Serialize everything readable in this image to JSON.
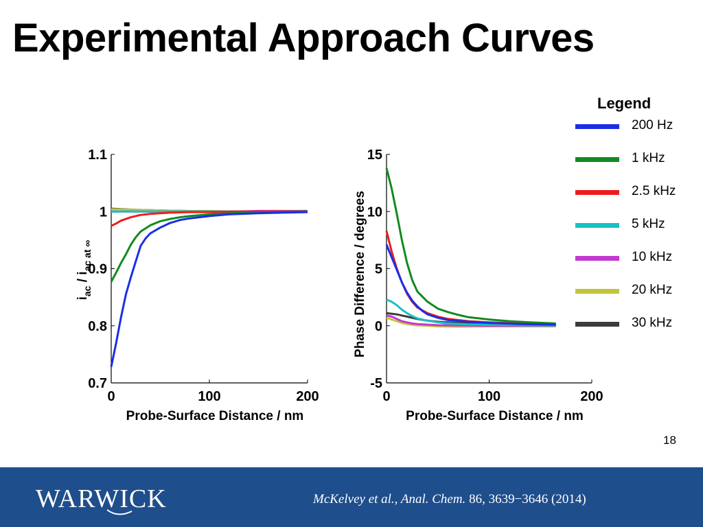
{
  "slide": {
    "title": "Experimental Approach Curves",
    "slide_number": "18",
    "colors": {
      "footer_bg": "#1f4e8c",
      "footer_text": "#ffffff"
    }
  },
  "legend": {
    "title": "Legend",
    "items": [
      {
        "label": "200 Hz",
        "color": "#1a2ee8"
      },
      {
        "label": "1 kHz",
        "color": "#128a1e"
      },
      {
        "label": "2.5 kHz",
        "color": "#ee1c1c"
      },
      {
        "label": "5 kHz",
        "color": "#16c2c6"
      },
      {
        "label": "10 kHz",
        "color": "#c23ad2"
      },
      {
        "label": "20 kHz",
        "color": "#c2c43e"
      },
      {
        "label": "30 kHz",
        "color": "#3c3c3c"
      }
    ]
  },
  "footer": {
    "logo_text": "WARWICK",
    "citation_authors": "McKelvey et al., ",
    "citation_journal": "Anal. Chem.",
    "citation_details": " 86, 3639−3646 (2014)"
  },
  "chart_data": [
    {
      "type": "line",
      "xlabel": "Probe-Surface Distance / nm",
      "ylabel_main": "i",
      "ylabel_sub1": "ac",
      "ylabel_mid": " / i",
      "ylabel_sub2": "ac at ∞",
      "xlim": [
        0,
        200
      ],
      "ylim": [
        0.7,
        1.1
      ],
      "xticks": [
        0,
        100,
        200
      ],
      "yticks": [
        0.7,
        0.8,
        0.9,
        1,
        1.1
      ],
      "ytick_labels": [
        "0.7",
        "0.8",
        "0.9",
        "1",
        "1.1"
      ],
      "grid": false,
      "series": [
        {
          "name": "200 Hz",
          "color": "#1a2ee8",
          "x": [
            0,
            5,
            10,
            15,
            20,
            25,
            30,
            35,
            40,
            50,
            60,
            70,
            80,
            100,
            120,
            150,
            175,
            200
          ],
          "y": [
            0.728,
            0.77,
            0.815,
            0.855,
            0.885,
            0.913,
            0.94,
            0.953,
            0.962,
            0.972,
            0.98,
            0.985,
            0.988,
            0.992,
            0.995,
            0.997,
            0.998,
            0.999
          ]
        },
        {
          "name": "1 kHz",
          "color": "#128a1e",
          "x": [
            0,
            5,
            10,
            15,
            20,
            25,
            30,
            40,
            50,
            60,
            70,
            80,
            100,
            120,
            150,
            175,
            200
          ],
          "y": [
            0.877,
            0.893,
            0.91,
            0.925,
            0.942,
            0.955,
            0.965,
            0.976,
            0.983,
            0.987,
            0.99,
            0.992,
            0.995,
            0.997,
            0.998,
            0.999,
            1.0
          ]
        },
        {
          "name": "2.5 kHz",
          "color": "#ee1c1c",
          "x": [
            0,
            5,
            10,
            20,
            30,
            40,
            50,
            60,
            80,
            100,
            125,
            150,
            175,
            200
          ],
          "y": [
            0.975,
            0.979,
            0.984,
            0.99,
            0.994,
            0.996,
            0.997,
            0.998,
            0.999,
            0.999,
            1.0,
            1.0,
            1.0,
            1.0
          ]
        },
        {
          "name": "5 kHz",
          "color": "#16c2c6",
          "x": [
            0,
            25,
            50,
            75,
            100,
            125,
            150,
            175,
            200
          ],
          "y": [
            1.0,
            1.0,
            1.0,
            1.0,
            1.0,
            1.0,
            1.0,
            1.0,
            1.0
          ]
        },
        {
          "name": "10 kHz",
          "color": "#c23ad2",
          "x": [
            0,
            25,
            50,
            75,
            100,
            125,
            150,
            175,
            200
          ],
          "y": [
            1.0,
            1.0,
            1.0,
            1.0,
            1.0,
            1.0,
            1.001,
            1.001,
            1.001
          ]
        },
        {
          "name": "20 kHz",
          "color": "#c2c43e",
          "x": [
            0,
            25,
            50,
            75,
            100,
            125,
            150,
            175,
            200
          ],
          "y": [
            1.004,
            1.003,
            1.002,
            1.001,
            1.001,
            1.0,
            1.0,
            1.0,
            1.0
          ]
        },
        {
          "name": "30 kHz",
          "color": "#3c3c3c",
          "x": [
            0,
            25,
            50,
            75,
            100,
            125,
            150,
            175,
            200
          ],
          "y": [
            1.005,
            1.003,
            1.002,
            1.001,
            1.0,
            1.0,
            1.0,
            1.0,
            1.0
          ]
        }
      ]
    },
    {
      "type": "line",
      "xlabel": "Probe-Surface Distance / nm",
      "ylabel": "Phase Difference / degrees",
      "xlim": [
        0,
        200
      ],
      "ylim": [
        -5,
        15
      ],
      "xticks": [
        0,
        100,
        200
      ],
      "yticks": [
        -5,
        0,
        5,
        10,
        15
      ],
      "ytick_labels": [
        "-5",
        "0",
        "5",
        "10",
        "15"
      ],
      "grid": false,
      "series": [
        {
          "name": "200 Hz",
          "color": "#1a2ee8",
          "x": [
            0,
            5,
            10,
            15,
            20,
            25,
            30,
            35,
            40,
            50,
            60,
            80,
            100,
            130,
            165
          ],
          "y": [
            7.1,
            6.0,
            4.9,
            3.8,
            2.9,
            2.2,
            1.7,
            1.3,
            1.0,
            0.7,
            0.5,
            0.35,
            0.25,
            0.15,
            0.1
          ]
        },
        {
          "name": "1 kHz",
          "color": "#128a1e",
          "x": [
            0,
            5,
            10,
            15,
            20,
            25,
            30,
            40,
            50,
            60,
            70,
            80,
            100,
            120,
            140,
            165
          ],
          "y": [
            13.8,
            12.0,
            9.8,
            7.5,
            5.5,
            4.0,
            3.0,
            2.1,
            1.5,
            1.2,
            0.95,
            0.75,
            0.55,
            0.4,
            0.3,
            0.2
          ]
        },
        {
          "name": "2.5 kHz",
          "color": "#ee1c1c",
          "x": [
            0,
            5,
            10,
            15,
            20,
            25,
            30,
            40,
            50,
            60,
            80,
            100,
            130,
            165
          ],
          "y": [
            8.3,
            6.5,
            5.0,
            3.8,
            2.8,
            2.1,
            1.6,
            1.1,
            0.8,
            0.6,
            0.4,
            0.3,
            0.2,
            0.1
          ]
        },
        {
          "name": "5 kHz",
          "color": "#16c2c6",
          "x": [
            0,
            5,
            10,
            15,
            20,
            25,
            30,
            40,
            50,
            60,
            80,
            100,
            130,
            165
          ],
          "y": [
            2.3,
            2.1,
            1.8,
            1.4,
            1.1,
            0.85,
            0.65,
            0.45,
            0.3,
            0.2,
            0.12,
            0.08,
            0.05,
            0.03
          ]
        },
        {
          "name": "10 kHz",
          "color": "#c23ad2",
          "x": [
            0,
            5,
            10,
            15,
            20,
            25,
            30,
            40,
            50,
            70,
            100,
            130,
            165
          ],
          "y": [
            0.9,
            0.8,
            0.6,
            0.4,
            0.3,
            0.2,
            0.15,
            0.1,
            0.05,
            0.03,
            0.0,
            0.0,
            0.0
          ]
        },
        {
          "name": "20 kHz",
          "color": "#c2c43e",
          "x": [
            0,
            5,
            10,
            15,
            20,
            25,
            30,
            40,
            50,
            70,
            100,
            130,
            165
          ],
          "y": [
            0.7,
            0.55,
            0.4,
            0.25,
            0.15,
            0.08,
            0.04,
            0.0,
            -0.05,
            -0.08,
            -0.05,
            -0.05,
            -0.05
          ]
        },
        {
          "name": "30 kHz",
          "color": "#3c3c3c",
          "x": [
            0,
            5,
            10,
            15,
            20,
            25,
            30,
            40,
            50,
            70,
            100,
            130,
            165
          ],
          "y": [
            1.1,
            1.05,
            1.0,
            0.9,
            0.8,
            0.7,
            0.6,
            0.45,
            0.35,
            0.25,
            0.15,
            0.1,
            0.05
          ]
        }
      ]
    }
  ]
}
